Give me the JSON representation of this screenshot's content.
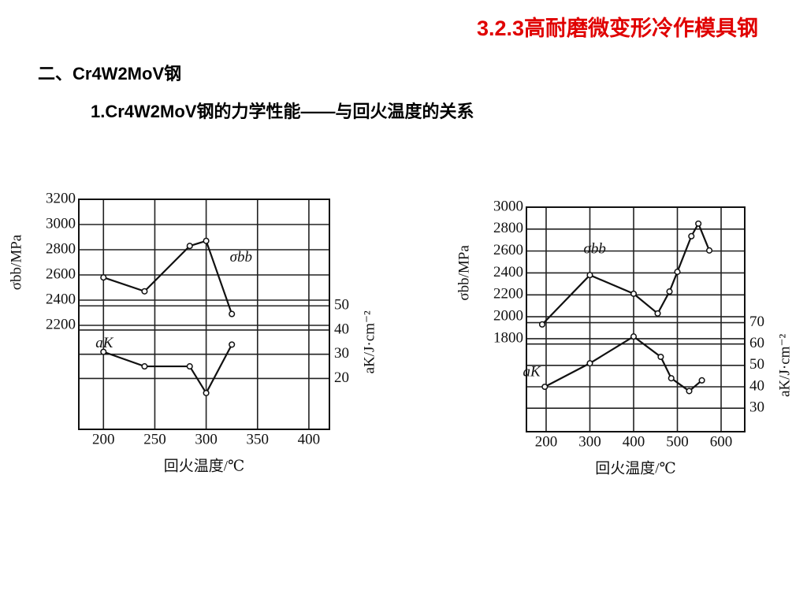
{
  "slide": {
    "title": "3.2.3高耐磨微变形冷作模具钢",
    "heading": "二、Cr4W2MoV钢",
    "subheading": "1.Cr4W2MoV钢的力学性能——与回火温度的关系"
  },
  "chart_data": [
    {
      "type": "line",
      "xlabel": "回火温度/℃",
      "ylabel": "σbb/MPa",
      "y2label": "aK/J·cm⁻²",
      "xlim": [
        176,
        420
      ],
      "xticks": [
        200,
        250,
        300,
        350,
        400
      ],
      "ylim": [
        1375,
        3200
      ],
      "yticks": [
        2200,
        2400,
        2600,
        2800,
        3000,
        3200
      ],
      "y2lim": [
        -1,
        94
      ],
      "y2ticks": [
        20,
        30,
        40,
        50
      ],
      "grid": true,
      "series": [
        {
          "name": "σbb",
          "color": "#111111",
          "x": [
            200,
            240,
            284,
            300,
            325
          ],
          "values": [
            2580,
            2470,
            2830,
            2870,
            2290
          ]
        },
        {
          "name": "aK",
          "color": "#111111",
          "axis": "y2",
          "x": [
            200,
            240,
            284,
            300,
            325
          ],
          "values": [
            31,
            25,
            25,
            14,
            34
          ]
        }
      ]
    },
    {
      "type": "line",
      "xlabel": "回火温度/℃",
      "ylabel": "σbb/MPa",
      "y2label": "aK/J·cm⁻²",
      "xlim": [
        155,
        654
      ],
      "xticks": [
        200,
        300,
        400,
        500,
        600
      ],
      "ylim": [
        951,
        3000
      ],
      "yticks": [
        1800,
        2000,
        2200,
        2400,
        2600,
        2800,
        3000
      ],
      "y2lim": [
        19,
        124
      ],
      "y2ticks": [
        30,
        40,
        50,
        60,
        70
      ],
      "grid": true,
      "series": [
        {
          "name": "σbb",
          "color": "#111111",
          "x": [
            191,
            300,
            400,
            455,
            482,
            500,
            532,
            548,
            573
          ],
          "values": [
            1930,
            2380,
            2210,
            2030,
            2230,
            2410,
            2735,
            2850,
            2605
          ]
        },
        {
          "name": "aK",
          "color": "#111111",
          "axis": "y2",
          "x": [
            197,
            300,
            400,
            462,
            486,
            527,
            556
          ],
          "values": [
            40,
            51,
            63.5,
            54,
            44,
            38,
            43
          ]
        }
      ]
    }
  ]
}
